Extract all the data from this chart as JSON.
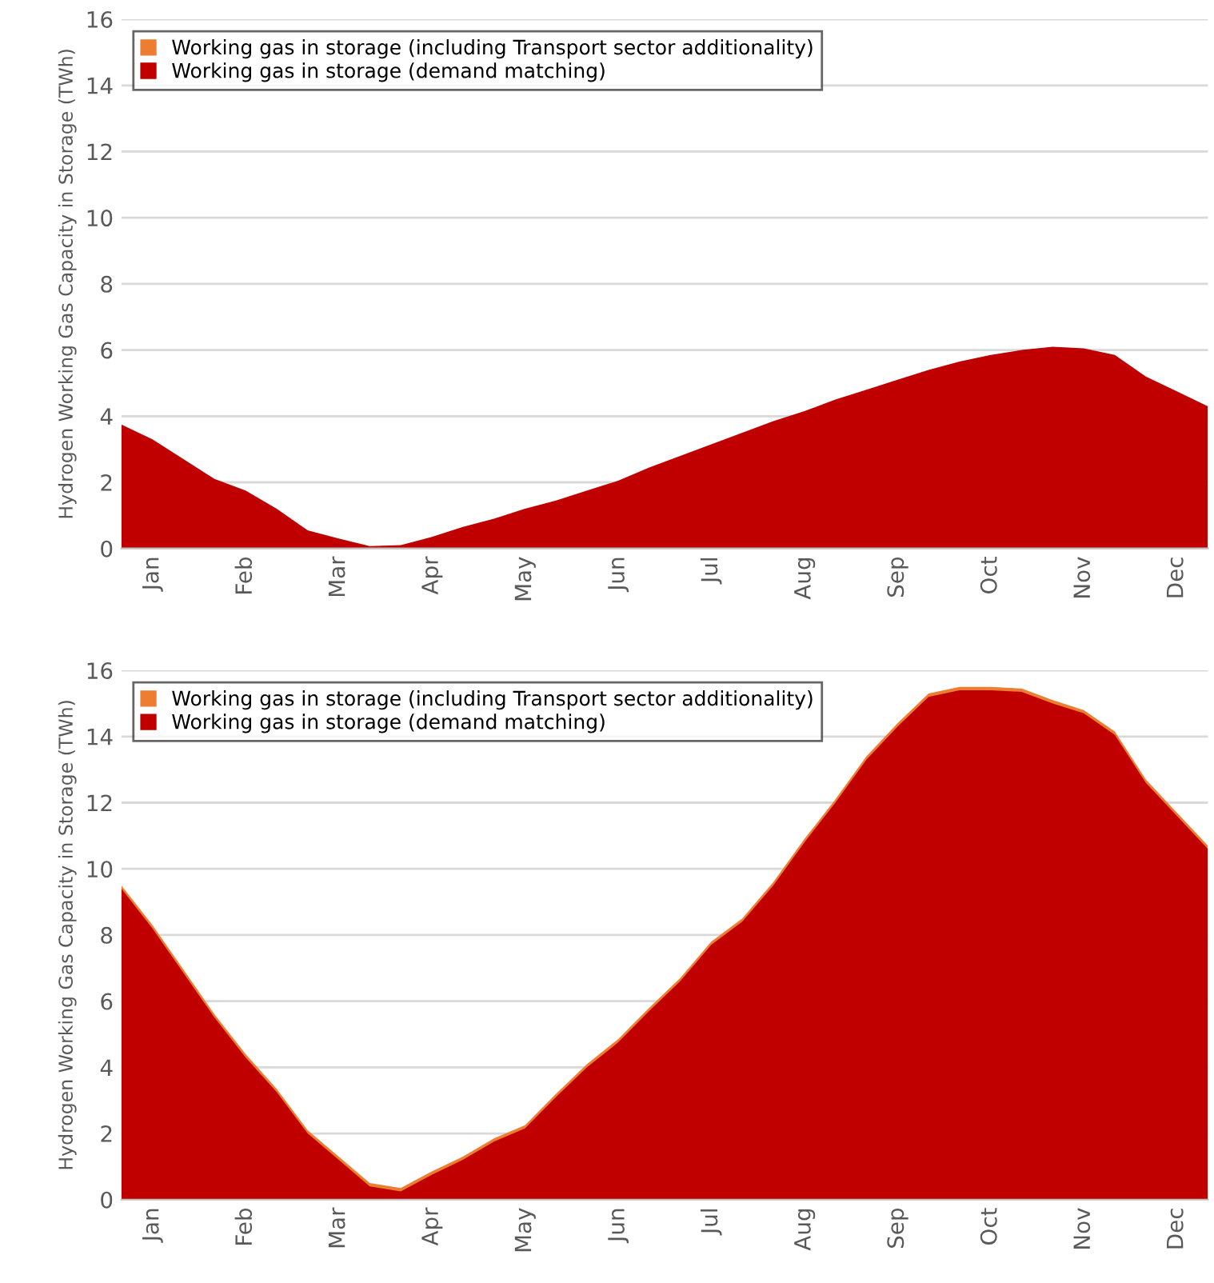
{
  "chart_data": [
    {
      "type": "area",
      "ylabel": "Hydrogen Working Gas Capacity in Storage (TWh)",
      "ylim": [
        0,
        16
      ],
      "yticks": [
        0,
        2,
        4,
        6,
        8,
        10,
        12,
        14,
        16
      ],
      "grid": "y",
      "legend": "top left",
      "categories": [
        null,
        "Jan",
        null,
        null,
        "Feb",
        null,
        null,
        "Mar",
        null,
        null,
        "Apr",
        null,
        null,
        "May",
        null,
        null,
        "Jun",
        null,
        null,
        "Jul",
        null,
        null,
        "Aug",
        null,
        null,
        "Sep",
        null,
        null,
        "Oct",
        null,
        null,
        "Nov",
        null,
        null,
        "Dec",
        null
      ],
      "series": [
        {
          "name": "Working gas in storage (including Transport sector additionality)",
          "color": "#ed7d31",
          "values": [
            null,
            null,
            null,
            null,
            null,
            null,
            null,
            null,
            null,
            null,
            null,
            null,
            null,
            null,
            null,
            null,
            null,
            null,
            null,
            null,
            null,
            null,
            null,
            null,
            null,
            null,
            null,
            null,
            null,
            null,
            null,
            null,
            null,
            null,
            null,
            null
          ]
        },
        {
          "name": "Working gas in storage (demand matching)",
          "color": "#c00000",
          "values": [
            3.75,
            3.3,
            2.7,
            2.1,
            1.75,
            1.2,
            0.55,
            0.3,
            0.07,
            0.1,
            0.35,
            0.65,
            0.9,
            1.2,
            1.45,
            1.75,
            2.05,
            2.45,
            2.8,
            3.15,
            3.5,
            3.85,
            4.15,
            4.5,
            4.8,
            5.1,
            5.4,
            5.65,
            5.85,
            6.0,
            6.1,
            6.05,
            5.85,
            5.2,
            4.75,
            4.3
          ]
        }
      ]
    },
    {
      "type": "area",
      "ylabel": "Hydrogen Working Gas Capacity in Storage (TWh)",
      "ylim": [
        0,
        16
      ],
      "yticks": [
        0,
        2,
        4,
        6,
        8,
        10,
        12,
        14,
        16
      ],
      "grid": "y",
      "legend": "top left",
      "categories": [
        null,
        "Jan",
        null,
        null,
        "Feb",
        null,
        null,
        "Mar",
        null,
        null,
        "Apr",
        null,
        null,
        "May",
        null,
        null,
        "Jun",
        null,
        null,
        "Jul",
        null,
        null,
        "Aug",
        null,
        null,
        "Sep",
        null,
        null,
        "Oct",
        null,
        null,
        "Nov",
        null,
        null,
        "Dec",
        null
      ],
      "series": [
        {
          "name": "Working gas in storage (including Transport sector additionality)",
          "color": "#ed7d31",
          "values": [
            9.5,
            8.3,
            6.95,
            5.6,
            4.4,
            3.35,
            2.1,
            1.3,
            0.5,
            0.35,
            0.85,
            1.3,
            1.85,
            2.25,
            3.2,
            4.1,
            4.85,
            5.8,
            6.7,
            7.8,
            8.5,
            9.6,
            10.9,
            12.1,
            13.4,
            14.4,
            15.3,
            15.5,
            15.5,
            15.45,
            15.1,
            14.8,
            14.15,
            12.7,
            11.7,
            10.7
          ]
        },
        {
          "name": "Working gas in storage (demand matching)",
          "color": "#c00000",
          "values": [
            9.4,
            8.2,
            6.85,
            5.5,
            4.3,
            3.25,
            2.0,
            1.2,
            0.4,
            0.25,
            0.75,
            1.2,
            1.75,
            2.15,
            3.1,
            4.0,
            4.75,
            5.7,
            6.6,
            7.7,
            8.4,
            9.5,
            10.8,
            12.0,
            13.3,
            14.3,
            15.2,
            15.4,
            15.4,
            15.35,
            15.0,
            14.7,
            14.05,
            12.6,
            11.6,
            10.6
          ]
        }
      ]
    }
  ]
}
